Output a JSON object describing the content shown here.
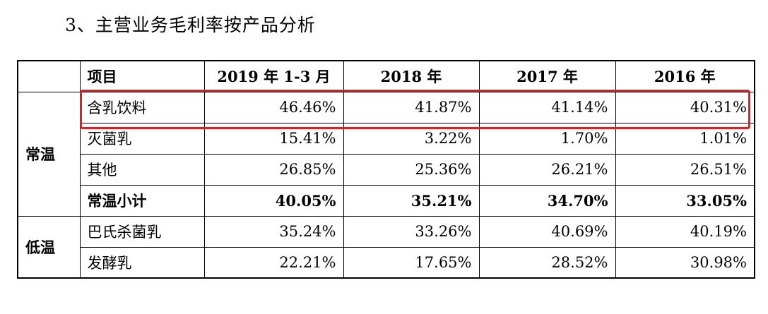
{
  "heading": "3、主营业务毛利率按产品分析",
  "table": {
    "headers": [
      "",
      "项目",
      "2019 年 1-3 月",
      "2018 年",
      "2017 年",
      "2016 年"
    ],
    "groups": [
      {
        "label": "常温",
        "rows": [
          {
            "name": "含乳饮料",
            "values": [
              "46.46%",
              "41.87%",
              "41.14%",
              "40.31%"
            ]
          },
          {
            "name": "灭菌乳",
            "values": [
              "15.41%",
              "3.22%",
              "1.70%",
              "1.01%"
            ]
          },
          {
            "name": "其他",
            "values": [
              "26.85%",
              "25.36%",
              "26.21%",
              "26.51%"
            ]
          },
          {
            "name": "常温小计",
            "values": [
              "40.05%",
              "35.21%",
              "34.70%",
              "33.05%"
            ],
            "bold": true
          }
        ]
      },
      {
        "label": "低温",
        "rows": [
          {
            "name": "巴氏杀菌乳",
            "values": [
              "35.24%",
              "33.26%",
              "40.69%",
              "40.19%"
            ]
          },
          {
            "name": "发酵乳",
            "values": [
              "22.21%",
              "17.65%",
              "28.52%",
              "30.98%"
            ]
          }
        ]
      }
    ]
  },
  "highlight": {
    "color": "#e02020",
    "row": "含乳饮料"
  }
}
